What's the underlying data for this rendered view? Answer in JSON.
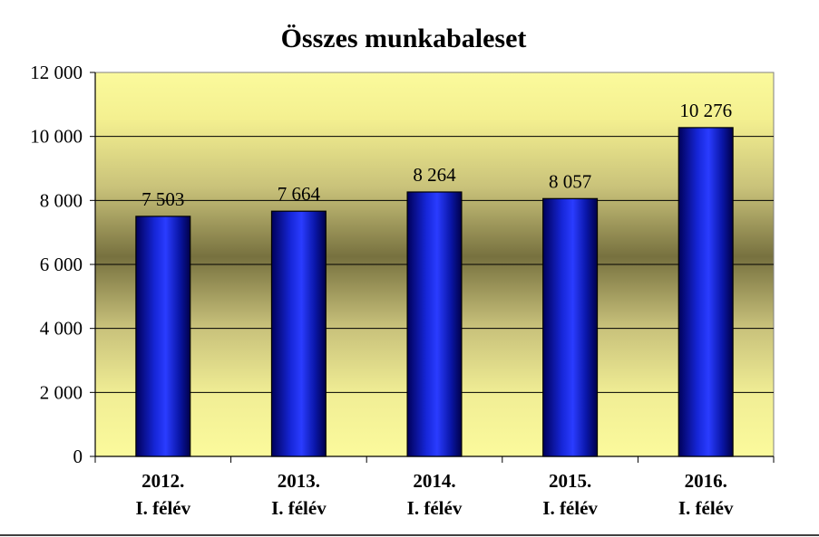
{
  "chart_data": {
    "type": "bar",
    "title": "Összes munkabaleset",
    "categories": [
      [
        "2012.",
        "I. félév"
      ],
      [
        "2013.",
        "I. félév"
      ],
      [
        "2014.",
        "I. félév"
      ],
      [
        "2015.",
        "I. félév"
      ],
      [
        "2016.",
        "I. félév"
      ]
    ],
    "values": [
      7503,
      7664,
      8264,
      8057,
      10276
    ],
    "value_labels": [
      "7 503",
      "7 664",
      "8 264",
      "8 057",
      "10 276"
    ],
    "yticks": [
      0,
      2000,
      4000,
      6000,
      8000,
      10000,
      12000
    ],
    "ytick_labels": [
      "0",
      "2 000",
      "4 000",
      "6 000",
      "8 000",
      "10 000",
      "12 000"
    ],
    "ylim": [
      0,
      12000
    ],
    "grid": true,
    "legend": "none",
    "colors": {
      "bar_dark": "#00005a",
      "bar_light": "#2a3cff",
      "plot_light": "#fbfa9c",
      "plot_dark": "#77713f"
    }
  }
}
